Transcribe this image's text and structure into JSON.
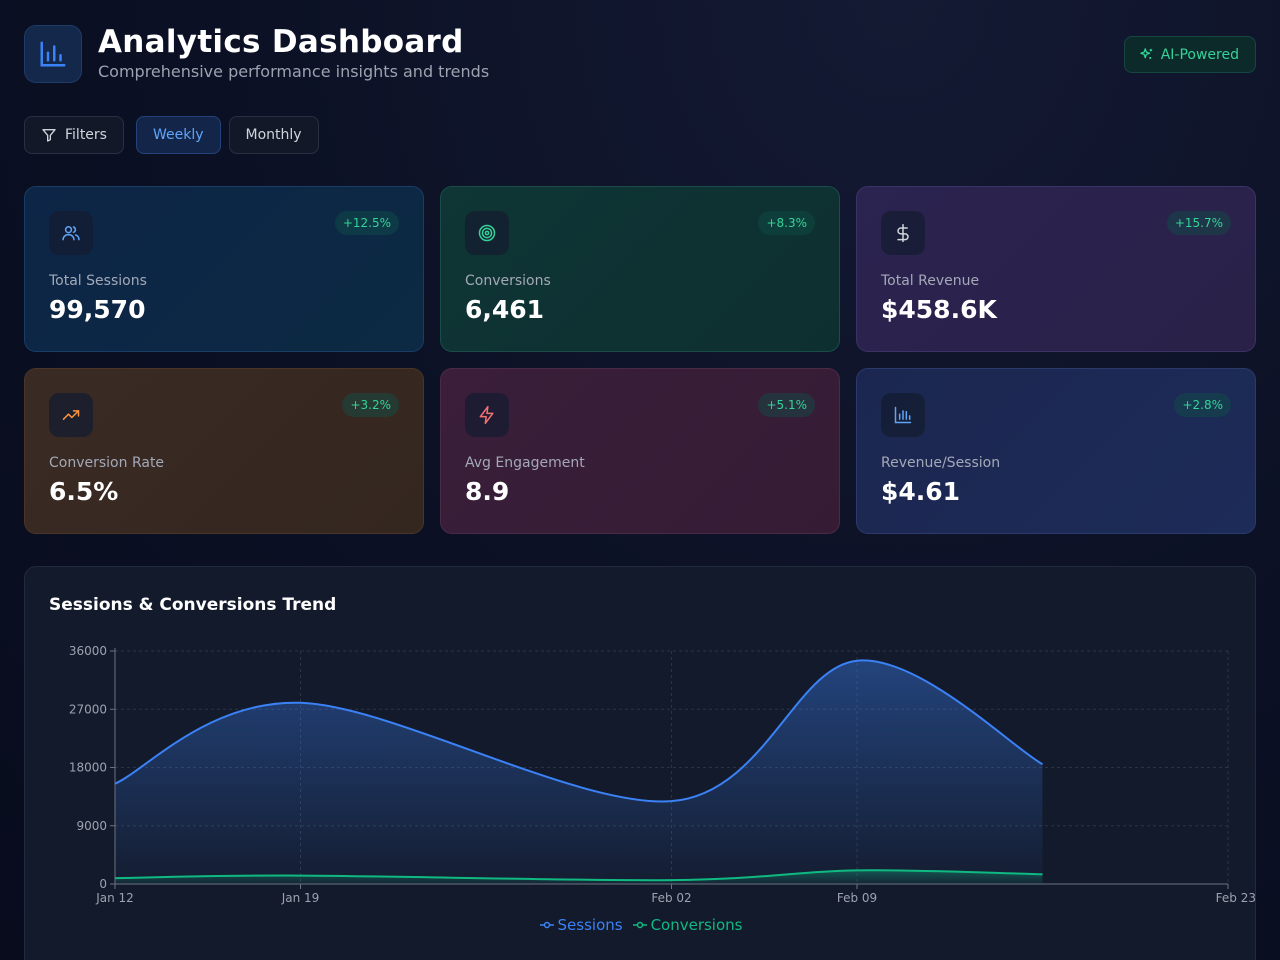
{
  "header": {
    "title": "Analytics Dashboard",
    "subtitle": "Comprehensive performance insights and trends",
    "badge": "AI-Powered"
  },
  "controls": {
    "filters": "Filters",
    "weekly": "Weekly",
    "monthly": "Monthly",
    "active": "Weekly"
  },
  "cards": [
    {
      "label": "Total Sessions",
      "value": "99,570",
      "change": "+12.5%",
      "icon": "users-icon",
      "accent": "#60a5fa"
    },
    {
      "label": "Conversions",
      "value": "6,461",
      "change": "+8.3%",
      "icon": "target-icon",
      "accent": "#34d399"
    },
    {
      "label": "Total Revenue",
      "value": "$458.6K",
      "change": "+15.7%",
      "icon": "dollar-icon",
      "accent": "#c4b5fd"
    },
    {
      "label": "Conversion Rate",
      "value": "6.5%",
      "change": "+3.2%",
      "icon": "trending-up-icon",
      "accent": "#fb923c"
    },
    {
      "label": "Avg Engagement",
      "value": "8.9",
      "change": "+5.1%",
      "icon": "zap-icon",
      "accent": "#f87171"
    },
    {
      "label": "Revenue/Session",
      "value": "$4.61",
      "change": "+2.8%",
      "icon": "bar-chart-icon",
      "accent": "#60a5fa"
    }
  ],
  "chart_data": {
    "type": "area",
    "title": "Sessions & Conversions Trend",
    "x_ticks": [
      "Jan 12",
      "Jan 19",
      "Feb 02",
      "Feb 09",
      "Feb 23"
    ],
    "x_tick_days": [
      0,
      7,
      21,
      28,
      42
    ],
    "y_ticks": [
      0,
      9000,
      18000,
      27000,
      36000
    ],
    "ylim": [
      0,
      36000
    ],
    "grid": true,
    "legend_position": "bottom",
    "series": [
      {
        "name": "Sessions",
        "color": "#3b82f6",
        "points": [
          {
            "x": "Jan 12",
            "day": 0,
            "y": 15500
          },
          {
            "x": "Jan 19",
            "day": 7,
            "y": 28000
          },
          {
            "x": "Feb 02",
            "day": 21,
            "y": 12800
          },
          {
            "x": "Feb 09",
            "day": 28,
            "y": 34500
          },
          {
            "x": "Feb 16",
            "day": 35,
            "y": 18500
          }
        ]
      },
      {
        "name": "Conversions",
        "color": "#10b981",
        "points": [
          {
            "x": "Jan 12",
            "day": 0,
            "y": 900
          },
          {
            "x": "Jan 19",
            "day": 7,
            "y": 1300
          },
          {
            "x": "Feb 02",
            "day": 21,
            "y": 600
          },
          {
            "x": "Feb 09",
            "day": 28,
            "y": 2100
          },
          {
            "x": "Feb 16",
            "day": 35,
            "y": 1500
          }
        ]
      }
    ]
  }
}
